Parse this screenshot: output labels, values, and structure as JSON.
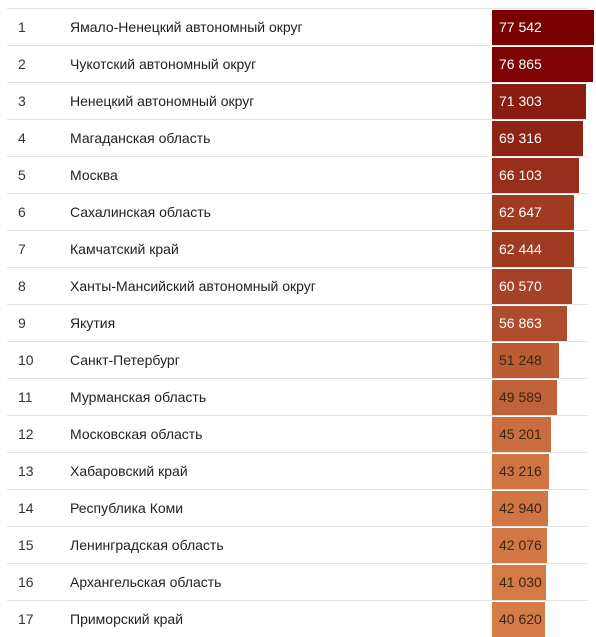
{
  "chart_data": {
    "type": "bar",
    "categories": [
      "Ямало-Ненецкий автономный округ",
      "Чукотский автономный округ",
      "Ненецкий автономный округ",
      "Магаданская область",
      "Москва",
      "Сахалинская область",
      "Камчатский край",
      "Ханты-Мансийский автономный округ",
      "Якутия",
      "Санкт-Петербург",
      "Мурманская область",
      "Московская область",
      "Хабаровский край",
      "Республика Коми",
      "Ленинградская область",
      "Архангельская область",
      "Приморский край"
    ],
    "values": [
      77542,
      76865,
      71303,
      69316,
      66103,
      62647,
      62444,
      60570,
      56863,
      51248,
      49589,
      45201,
      43216,
      42940,
      42076,
      41030,
      40620
    ],
    "rows": [
      {
        "rank": "1",
        "name": "Ямало-Ненецкий автономный округ",
        "value_label": "77 542",
        "value": 77542,
        "color": "#7a0000"
      },
      {
        "rank": "2",
        "name": "Чукотский автономный округ",
        "value_label": "76 865",
        "value": 76865,
        "color": "#7d0403"
      },
      {
        "rank": "3",
        "name": "Ненецкий автономный округ",
        "value_label": "71 303",
        "value": 71303,
        "color": "#8a1c12"
      },
      {
        "rank": "4",
        "name": "Магаданская область",
        "value_label": "69 316",
        "value": 69316,
        "color": "#8f2416"
      },
      {
        "rank": "5",
        "name": "Москва",
        "value_label": "66 103",
        "value": 66103,
        "color": "#972f1c"
      },
      {
        "rank": "6",
        "name": "Сахалинская область",
        "value_label": "62 647",
        "value": 62647,
        "color": "#a03a22"
      },
      {
        "rank": "7",
        "name": "Камчатский край",
        "value_label": "62 444",
        "value": 62444,
        "color": "#a03b23"
      },
      {
        "rank": "8",
        "name": "Ханты-Мансийский автономный округ",
        "value_label": "60 570",
        "value": 60570,
        "color": "#a54127"
      },
      {
        "rank": "9",
        "name": "Якутия",
        "value_label": "56 863",
        "value": 56863,
        "color": "#ae4c2d"
      },
      {
        "rank": "10",
        "name": "Санкт-Петербург",
        "value_label": "51 248",
        "value": 51248,
        "color": "#bb5c35"
      },
      {
        "rank": "11",
        "name": "Мурманская область",
        "value_label": "49 589",
        "value": 49589,
        "color": "#bf6139"
      },
      {
        "rank": "12",
        "name": "Московская область",
        "value_label": "45 201",
        "value": 45201,
        "color": "#ca6e3f"
      },
      {
        "rank": "13",
        "name": "Хабаровский край",
        "value_label": "43 216",
        "value": 43216,
        "color": "#cf7442"
      },
      {
        "rank": "14",
        "name": "Республика Коми",
        "value_label": "42 940",
        "value": 42940,
        "color": "#d07543"
      },
      {
        "rank": "15",
        "name": "Ленинградская область",
        "value_label": "42 076",
        "value": 42076,
        "color": "#d27844"
      },
      {
        "rank": "16",
        "name": "Архангельская область",
        "value_label": "41 030",
        "value": 41030,
        "color": "#d47a46"
      },
      {
        "rank": "17",
        "name": "Приморский край",
        "value_label": "40 620",
        "value": 40620,
        "color": "#d57c47"
      }
    ],
    "title": "",
    "xlabel": "",
    "ylabel": "",
    "xlim": [
      0,
      77542
    ],
    "grid": false
  }
}
